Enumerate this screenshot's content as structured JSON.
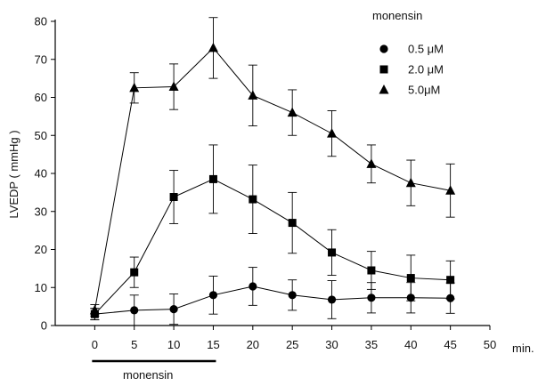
{
  "chart_data": {
    "type": "line",
    "ylabel": "LVEDP ( mmHg )",
    "xlabel": "min.",
    "xlim": [
      -5,
      50
    ],
    "ylim": [
      0,
      80
    ],
    "x_ticks": [
      0,
      5,
      10,
      15,
      20,
      25,
      30,
      35,
      40,
      45,
      50
    ],
    "y_ticks": [
      0,
      10,
      20,
      30,
      40,
      50,
      60,
      70,
      80
    ],
    "legend_title": "monensin",
    "legend_position": "top-right",
    "treatment_bar": {
      "label": "monensin",
      "from": 0,
      "to": 15
    },
    "series": [
      {
        "name": "0.5 μM",
        "marker": "circle",
        "x": [
          0,
          5,
          10,
          15,
          20,
          25,
          30,
          35,
          40,
          45
        ],
        "values": [
          3.0,
          4.0,
          4.3,
          8.0,
          10.3,
          8.0,
          6.8,
          7.3,
          7.3,
          7.2
        ],
        "errors": [
          1.5,
          4.0,
          4.0,
          5.0,
          5.0,
          4.0,
          5.0,
          4.0,
          4.0,
          4.0
        ]
      },
      {
        "name": "2.0 μM",
        "marker": "square",
        "x": [
          0,
          5,
          10,
          15,
          20,
          25,
          30,
          35,
          40,
          45
        ],
        "values": [
          3.0,
          14.0,
          33.8,
          38.5,
          33.2,
          27.0,
          19.2,
          14.5,
          12.5,
          12.0
        ],
        "errors": [
          1.5,
          4.0,
          7.0,
          9.0,
          9.0,
          8.0,
          6.0,
          5.0,
          6.0,
          5.0
        ]
      },
      {
        "name": "5.0μM",
        "marker": "triangle",
        "x": [
          0,
          5,
          10,
          15,
          20,
          25,
          30,
          35,
          40,
          45
        ],
        "values": [
          4.0,
          62.5,
          62.8,
          73.0,
          60.5,
          56.0,
          50.5,
          42.5,
          37.5,
          35.5
        ],
        "errors": [
          1.5,
          4.0,
          6.0,
          8.0,
          8.0,
          6.0,
          6.0,
          5.0,
          6.0,
          7.0
        ]
      }
    ]
  }
}
